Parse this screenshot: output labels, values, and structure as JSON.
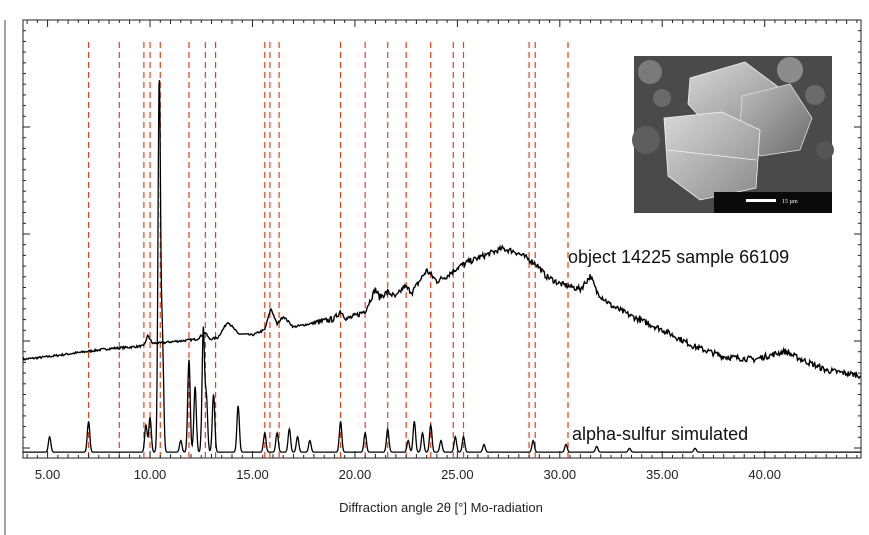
{
  "chart_data": {
    "type": "line",
    "title": "",
    "xlabel": "Diffraction angle 2θ [°] Mo-radiation",
    "ylabel": "",
    "xlim": [
      3.8,
      44.7
    ],
    "ylim": [
      0,
      100
    ],
    "x_ticks": [
      5,
      10,
      15,
      20,
      25,
      30,
      35,
      40
    ],
    "x_tick_labels": [
      "5.00",
      "10.00",
      "15.00",
      "20.00",
      "25.00",
      "30.00",
      "35.00",
      "40.00"
    ],
    "reference_lines_color": "#e8401c",
    "reference_lines_x": [
      7.0,
      8.5,
      9.7,
      10.0,
      10.5,
      11.9,
      12.7,
      13.2,
      15.6,
      15.85,
      16.3,
      19.3,
      20.5,
      21.6,
      22.5,
      23.7,
      24.8,
      25.3,
      28.5,
      28.8,
      30.4
    ],
    "series": [
      {
        "name": "object 14225 sample 66109",
        "color": "#000000",
        "points": [
          [
            3.8,
            28
          ],
          [
            5,
            29
          ],
          [
            6,
            30
          ],
          [
            7,
            31
          ],
          [
            8,
            32
          ],
          [
            9,
            32.5
          ],
          [
            9.7,
            33
          ],
          [
            9.9,
            37
          ],
          [
            10.1,
            34
          ],
          [
            10.5,
            34
          ],
          [
            11,
            34.5
          ],
          [
            11.7,
            35
          ],
          [
            12.3,
            35.5
          ],
          [
            12.7,
            38
          ],
          [
            12.9,
            35.5
          ],
          [
            13.3,
            36
          ],
          [
            13.8,
            42
          ],
          [
            14.3,
            37.5
          ],
          [
            15,
            37
          ],
          [
            15.6,
            39
          ],
          [
            15.9,
            47
          ],
          [
            16.2,
            41
          ],
          [
            16.5,
            44
          ],
          [
            17,
            40
          ],
          [
            18,
            41.5
          ],
          [
            19,
            43
          ],
          [
            19.3,
            46
          ],
          [
            19.6,
            43
          ],
          [
            20,
            44
          ],
          [
            20.5,
            46
          ],
          [
            21,
            54
          ],
          [
            21.2,
            51
          ],
          [
            21.6,
            53
          ],
          [
            22,
            51
          ],
          [
            22.4,
            55
          ],
          [
            22.8,
            53
          ],
          [
            23.5,
            61
          ],
          [
            24,
            57
          ],
          [
            24.5,
            59
          ],
          [
            25,
            62
          ],
          [
            25.5,
            64
          ],
          [
            26.5,
            67
          ],
          [
            27.2,
            69
          ],
          [
            27.8,
            68
          ],
          [
            28.5,
            65
          ],
          [
            28.9,
            63
          ],
          [
            29.3,
            59
          ],
          [
            30,
            56
          ],
          [
            31,
            54
          ],
          [
            31.5,
            59
          ],
          [
            31.8,
            53
          ],
          [
            32.5,
            48
          ],
          [
            33.5,
            44
          ],
          [
            35,
            39
          ],
          [
            36.5,
            33
          ],
          [
            38,
            29
          ],
          [
            39.5,
            28
          ],
          [
            40.5,
            30
          ],
          [
            41,
            31
          ],
          [
            41.5,
            29
          ],
          [
            43,
            24
          ],
          [
            44.7,
            22
          ]
        ]
      },
      {
        "name": "alpha-sulfur simulated",
        "color": "#000000",
        "baseline": 1,
        "peaks": [
          [
            5.1,
            4
          ],
          [
            7.0,
            8
          ],
          [
            9.8,
            7
          ],
          [
            10.0,
            9
          ],
          [
            10.45,
            96
          ],
          [
            10.6,
            30
          ],
          [
            11.5,
            3
          ],
          [
            11.9,
            24
          ],
          [
            12.2,
            17
          ],
          [
            12.6,
            32
          ],
          [
            12.75,
            14
          ],
          [
            13.1,
            15
          ],
          [
            14.3,
            12
          ],
          [
            15.6,
            5
          ],
          [
            16.2,
            5
          ],
          [
            16.8,
            6
          ],
          [
            17.2,
            4
          ],
          [
            17.8,
            3
          ],
          [
            19.3,
            8
          ],
          [
            20.5,
            5
          ],
          [
            21.6,
            6
          ],
          [
            22.6,
            3
          ],
          [
            22.9,
            8
          ],
          [
            23.3,
            5
          ],
          [
            23.7,
            7
          ],
          [
            24.2,
            3
          ],
          [
            24.9,
            4
          ],
          [
            25.3,
            4
          ],
          [
            26.3,
            2
          ],
          [
            28.7,
            3
          ],
          [
            30.3,
            2
          ],
          [
            31.8,
            1.5
          ],
          [
            33.4,
            1
          ],
          [
            36.6,
            1
          ]
        ]
      }
    ]
  },
  "inset": {
    "description_icon": "sem-micrograph-icon",
    "scale_bar_text": "15 µm"
  }
}
